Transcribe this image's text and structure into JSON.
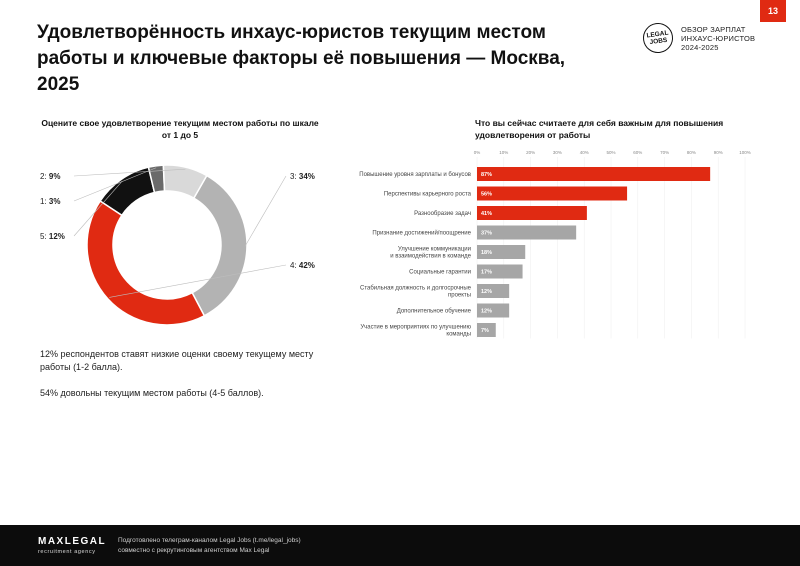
{
  "page_number": "13",
  "title": "Удовлетворённость инхаус-юристов текущим местом работы и ключевые факторы её повышения — Москва, 2025",
  "brand": {
    "logo_line1": "LEGAL",
    "logo_line2": "JOBS",
    "line1": "ОБЗОР ЗАРПЛАТ",
    "line2": "ИНХАУС-ЮРИСТОВ",
    "line3": "2024-2025"
  },
  "notes": {
    "note1": "12% респондентов ставят низкие оценки своему текущему месту работы (1-2 балла).",
    "note2": "54% довольны текущим местом работы (4-5 баллов)."
  },
  "footer": {
    "logo": "MAXLEGAL",
    "logo_sub": "recruitment agency",
    "text1": "Подготовлено телеграм-каналом Legal Jobs (t.me/legal_jobs)",
    "text2": "совместно с рекрутинговым агентством Max Legal"
  },
  "chart_data": [
    {
      "type": "pie",
      "title": "Оцените свое удовлетворение текущим местом работы по шкале от 1 до 5",
      "slices": [
        {
          "label": "3",
          "value_label": "34%",
          "value": 34,
          "color": "#b3b3b3"
        },
        {
          "label": "4",
          "value_label": "42%",
          "value": 42,
          "color": "#e02a12"
        },
        {
          "label": "5",
          "value_label": "12%",
          "value": 12,
          "color": "#111111"
        },
        {
          "label": "1",
          "value_label": "3%",
          "value": 3,
          "color": "#6a6a6a"
        },
        {
          "label": "2",
          "value_label": "9%",
          "value": 9,
          "color": "#d9d9d9"
        }
      ]
    },
    {
      "type": "bar",
      "orientation": "horizontal",
      "title": "Что вы сейчас считаете для себя важным для повышения удовлетворения от работы",
      "xlim": [
        0,
        100
      ],
      "ticks": [
        "0%",
        "10%",
        "20%",
        "30%",
        "40%",
        "50%",
        "60%",
        "70%",
        "80%",
        "90%",
        "100%"
      ],
      "categories": [
        [
          "Повышение уровня зарплаты и бонусов"
        ],
        [
          "Перспективы карьерного роста"
        ],
        [
          "Разнообразие задач"
        ],
        [
          "Признание достижений/поощрение"
        ],
        [
          "Улучшение коммуникации",
          "и взаимодействия в команде"
        ],
        [
          "Социальные гарантии"
        ],
        [
          "Стабильная должность и долгосрочные",
          "проекты"
        ],
        [
          "Дополнительное обучение"
        ],
        [
          "Участие в мероприятиях по улучшению",
          "команды"
        ]
      ],
      "values": [
        87,
        56,
        41,
        37,
        18,
        17,
        12,
        12,
        7
      ],
      "value_labels": [
        "87%",
        "56%",
        "41%",
        "37%",
        "18%",
        "17%",
        "12%",
        "12%",
        "7%"
      ],
      "colors": [
        "#e02a12",
        "#e02a12",
        "#e02a12",
        "#a6a6a6",
        "#a6a6a6",
        "#a6a6a6",
        "#a6a6a6",
        "#a6a6a6",
        "#a6a6a6"
      ]
    }
  ]
}
